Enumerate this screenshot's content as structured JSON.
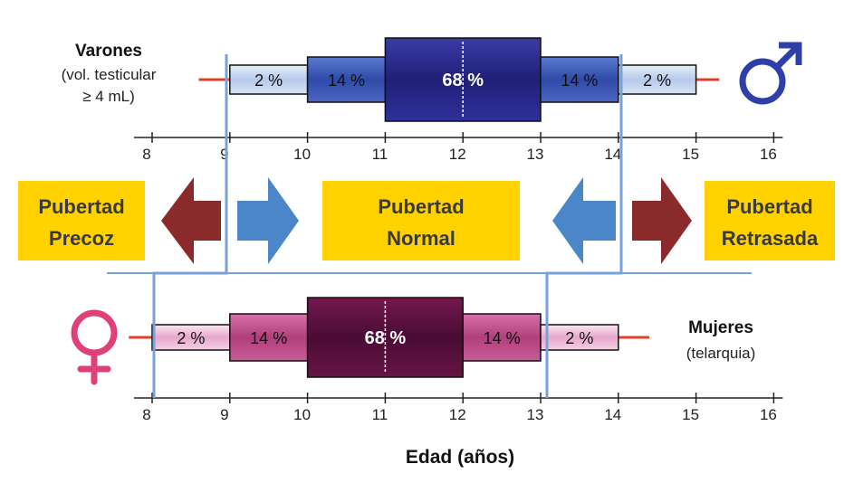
{
  "male": {
    "label_title": "Varones",
    "label_line2": "(vol. testicular",
    "label_line3": "≥ 4 mL)",
    "symbol": "♂",
    "range": [
      8.6,
      15.3
    ],
    "whisker": [
      8.6,
      15.3
    ],
    "segments": [
      {
        "from": 9,
        "to": 10,
        "label": "2 %"
      },
      {
        "from": 10,
        "to": 11,
        "label": "14 %"
      },
      {
        "from": 11,
        "to": 13,
        "label": "68 %"
      },
      {
        "from": 13,
        "to": 14,
        "label": "14 %"
      },
      {
        "from": 14,
        "to": 15,
        "label": "2 %"
      }
    ],
    "median": 12,
    "axis_ticks": [
      8,
      9,
      10,
      11,
      12,
      13,
      14,
      15,
      16
    ],
    "colors": {
      "outer": "#c8d8f0",
      "mid": "#3b55b0",
      "center": "#2a2a86",
      "symbol": "#2f3fa8"
    }
  },
  "female": {
    "label_title": "Mujeres",
    "label_line2": "(telarquia)",
    "symbol": "♀",
    "whisker": [
      7.7,
      14.4
    ],
    "segments": [
      {
        "from": 8,
        "to": 9,
        "label": "2 %"
      },
      {
        "from": 9,
        "to": 10,
        "label": "14 %"
      },
      {
        "from": 10,
        "to": 12,
        "label": "68 %"
      },
      {
        "from": 12,
        "to": 13,
        "label": "14 %"
      },
      {
        "from": 13,
        "to": 14,
        "label": "2 %"
      }
    ],
    "median": 11,
    "axis_ticks": [
      8,
      9,
      10,
      11,
      12,
      13,
      14,
      15,
      16
    ],
    "colors": {
      "outer": "#f0c8e0",
      "mid": "#c0508e",
      "center": "#5a1040",
      "symbol": "#e0407a"
    }
  },
  "boxes": [
    {
      "line1": "Pubertad",
      "line2": "Precoz"
    },
    {
      "line1": "Pubertad",
      "line2": "Normal"
    },
    {
      "line1": "Pubertad",
      "line2": "Retrasada"
    }
  ],
  "xlabel": "Edad (años)",
  "colors": {
    "box_fill": "#ffd200",
    "arrow_red": "#8b2a2a",
    "arrow_blue": "#4a86c8",
    "whisker": "#e0402a",
    "guide": "#7aa0d8"
  }
}
